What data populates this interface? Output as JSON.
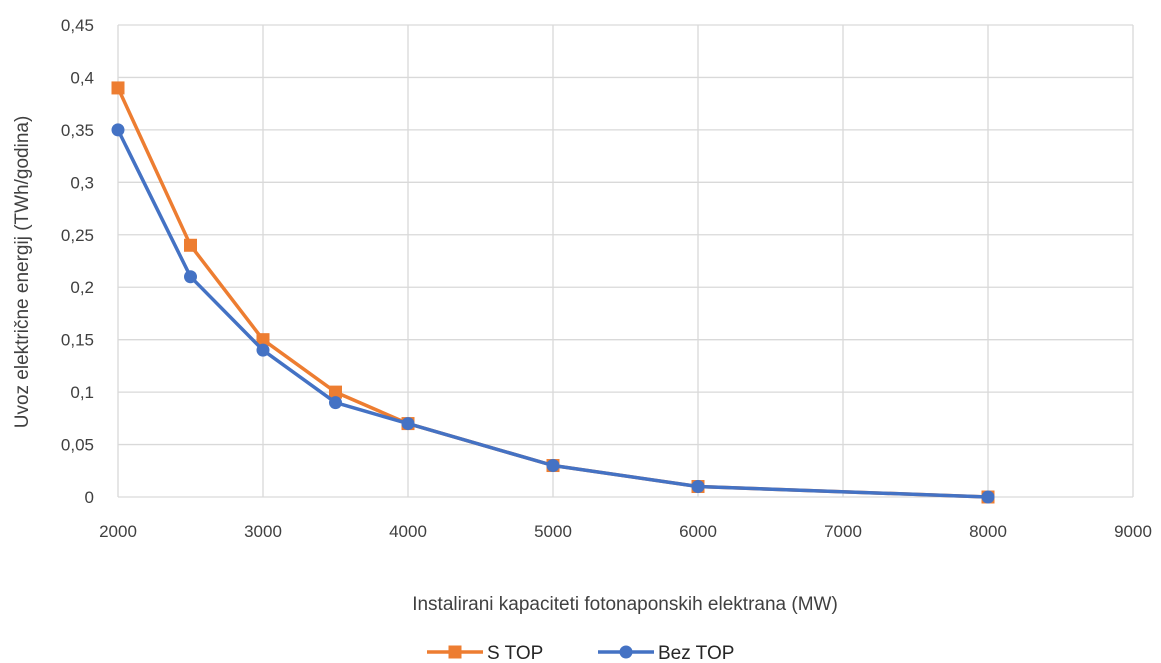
{
  "chart_data": {
    "type": "line",
    "title": "",
    "xlabel": "Instalirani kapaciteti fotonaponskih elektrana (MW)",
    "ylabel": "Uvoz električne energij (TWh/godina)",
    "xlim": [
      2000,
      9000
    ],
    "ylim": [
      0,
      0.45
    ],
    "x_ticks": [
      "2000",
      "3000",
      "4000",
      "5000",
      "6000",
      "7000",
      "8000",
      "9000"
    ],
    "y_ticks": [
      "0",
      "0,05",
      "0,1",
      "0,15",
      "0,2",
      "0,25",
      "0,3",
      "0,35",
      "0,4",
      "0,45"
    ],
    "grid": true,
    "legend_position": "bottom",
    "series": [
      {
        "name": "S TOP",
        "color": "#ed7d31",
        "marker": "square",
        "x": [
          2000,
          2500,
          3000,
          3500,
          4000,
          5000,
          6000,
          8000
        ],
        "values": [
          0.39,
          0.24,
          0.15,
          0.1,
          0.07,
          0.03,
          0.01,
          0.0
        ]
      },
      {
        "name": "Bez TOP",
        "color": "#4472c4",
        "marker": "circle",
        "x": [
          2000,
          2500,
          3000,
          3500,
          4000,
          5000,
          6000,
          8000
        ],
        "values": [
          0.35,
          0.21,
          0.14,
          0.09,
          0.07,
          0.03,
          0.01,
          0.0
        ]
      }
    ]
  }
}
